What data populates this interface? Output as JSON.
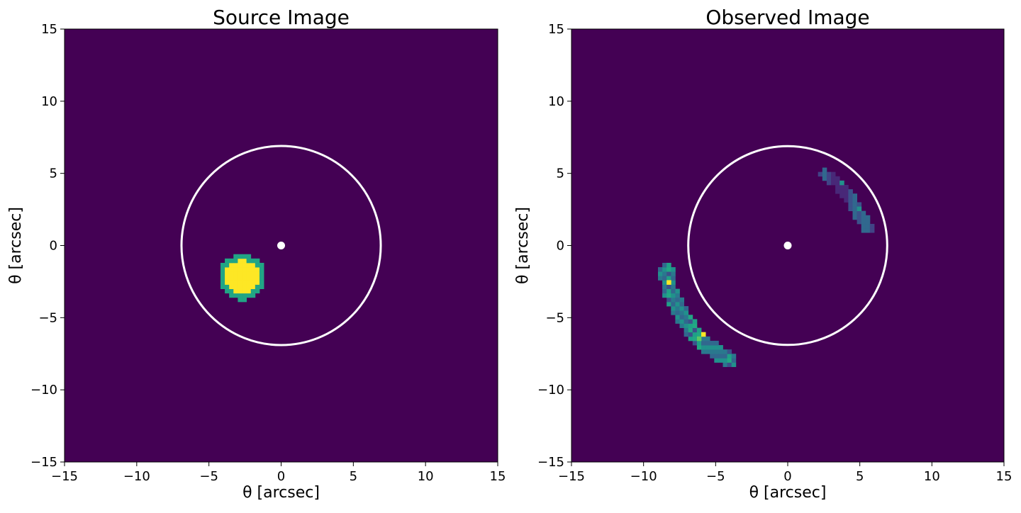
{
  "chart_data": [
    {
      "type": "heatmap",
      "title": "Source Image",
      "xlabel": "θ   [arcsec]",
      "ylabel": "θ   [arcsec]",
      "xlim": [
        -15,
        15
      ],
      "ylim": [
        -15,
        15
      ],
      "ticks": [
        -15,
        -10,
        -5,
        0,
        5,
        10,
        15
      ],
      "grid": false,
      "background_color": "#440154",
      "einstein_ring": {
        "center": [
          0,
          0
        ],
        "radius": 6.9,
        "color": "#ffffff"
      },
      "lens_center": {
        "x": 0,
        "y": 0,
        "color": "#ffffff"
      },
      "pixel_size": 0.3,
      "blobs": [
        {
          "cx": -2.7,
          "cy": -2.2,
          "r_core": 1.2,
          "r_edge": 1.6,
          "core_color": "#fde725",
          "edge_color": "#21a585"
        }
      ]
    },
    {
      "type": "heatmap",
      "title": "Observed Image",
      "xlabel": "θ   [arcsec]",
      "ylabel": "θ   [arcsec]",
      "xlim": [
        -15,
        15
      ],
      "ylim": [
        -15,
        15
      ],
      "ticks": [
        -15,
        -10,
        -5,
        0,
        5,
        10,
        15
      ],
      "grid": false,
      "background_color": "#440154",
      "einstein_ring": {
        "center": [
          0,
          0
        ],
        "radius": 6.9,
        "color": "#ffffff"
      },
      "lens_center": {
        "x": 0,
        "y": 0,
        "color": "#ffffff"
      },
      "pixel_size": 0.3,
      "arcs": [
        {
          "name": "outer arc",
          "points": [
            [
              -8.4,
              -1.7
            ],
            [
              -8.2,
              -3.0
            ],
            [
              -7.7,
              -4.2
            ],
            [
              -7.0,
              -5.4
            ],
            [
              -6.1,
              -6.5
            ],
            [
              -5.1,
              -7.3
            ],
            [
              -4.0,
              -7.9
            ]
          ],
          "half_width": 0.55,
          "colors": [
            "#21918c",
            "#3b528b",
            "#2a788e",
            "#1fa187",
            "#31688e",
            "#22a884"
          ],
          "bright_pixels": [
            {
              "x": -8.3,
              "y": -2.5,
              "color": "#fde725"
            },
            {
              "x": -6.0,
              "y": -6.2,
              "color": "#fde725"
            },
            {
              "x": -6.3,
              "y": -6.4,
              "color": "#5ec962"
            }
          ]
        },
        {
          "name": "inner arc",
          "points": [
            [
              2.6,
              4.9
            ],
            [
              3.4,
              4.4
            ],
            [
              4.1,
              3.6
            ],
            [
              4.7,
              2.6
            ],
            [
              5.2,
              1.8
            ],
            [
              5.6,
              1.2
            ]
          ],
          "half_width": 0.4,
          "colors": [
            "#3b528b",
            "#414487",
            "#31688e",
            "#482878"
          ],
          "bright_pixels": [
            {
              "x": 3.8,
              "y": 4.2,
              "color": "#21918c"
            },
            {
              "x": 5.0,
              "y": 2.4,
              "color": "#21918c"
            }
          ]
        }
      ]
    }
  ]
}
